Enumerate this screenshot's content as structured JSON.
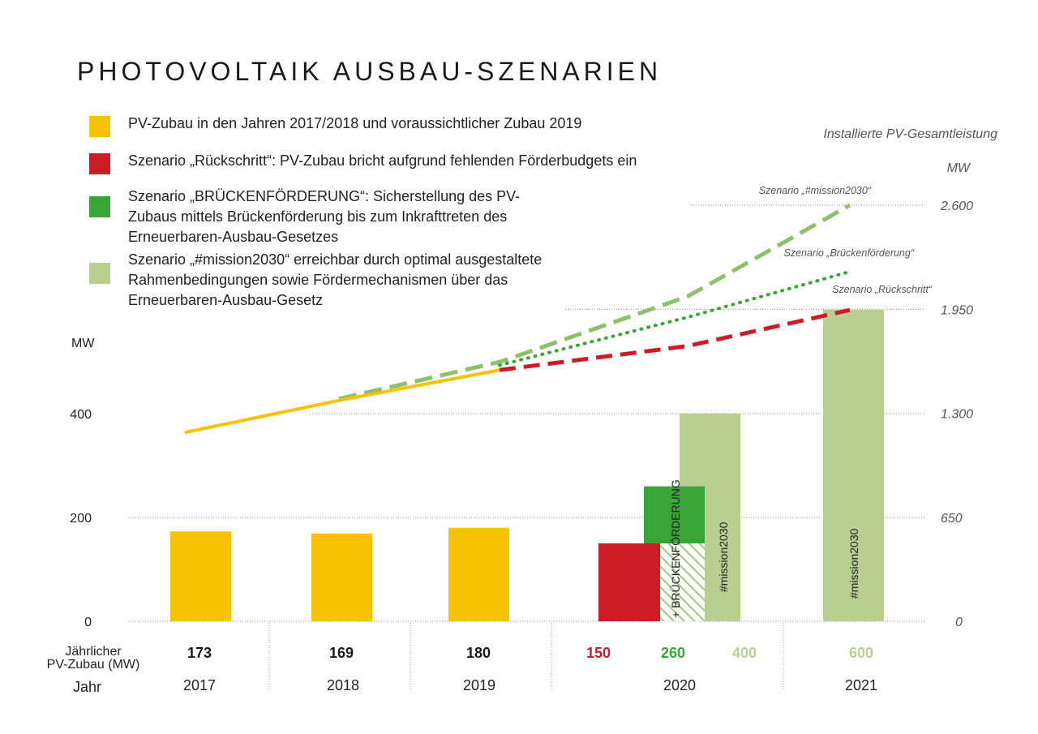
{
  "title": "PHOTOVOLTAIK AUSBAU-SZENARIEN",
  "legend": [
    {
      "color": "#f7c200",
      "text": "PV-Zubau in den Jahren 2017/2018 und voraussichtlicher Zubau 2019"
    },
    {
      "color": "#cc1d24",
      "text": "Szenario „Rückschritt“: PV-Zubau bricht aufgrund fehlenden Förderbudgets ein"
    },
    {
      "color": "#3aa537",
      "text": "Szenario „BRÜCKENFÖRDERUNG“: Sicherstellung des PV-Zubaus mittels Brückenförderung bis zum Inkrafttreten des Erneuerbaren-Ausbau-Gesetzes"
    },
    {
      "color": "#b9cf8f",
      "text": "Szenario „#mission2030“ erreichbar durch optimal ausgestaltete Rahmenbedingungen sowie Fördermechanismen über das Erneuerbaren-Ausbau-Gesetz"
    }
  ],
  "chart_data": {
    "type": "bar",
    "title": "PHOTOVOLTAIK AUSBAU-SZENARIEN",
    "left_axis": {
      "unit": "MW",
      "ticks": [
        0,
        200,
        400
      ],
      "ticklabels": [
        "0",
        "200",
        "400"
      ]
    },
    "right_axis": {
      "title": "Installierte PV-Gesamtleistung",
      "unit": "MW",
      "ticks": [
        0,
        650,
        1300,
        1950,
        2600
      ],
      "ticklabels": [
        "0",
        "650",
        "1.300",
        "1.950",
        "2.600"
      ]
    },
    "row_headers": {
      "annual": "Jährlicher PV-Zubau (MW)",
      "year": "Jahr"
    },
    "years": [
      "2017",
      "2018",
      "2019",
      "2020",
      "2021"
    ],
    "bars": [
      {
        "year": "2017",
        "value": 173,
        "scenario": "historic",
        "label": "173"
      },
      {
        "year": "2018",
        "value": 169,
        "scenario": "historic",
        "label": "169"
      },
      {
        "year": "2019",
        "value": 180,
        "scenario": "historic",
        "label": "180"
      },
      {
        "year": "2020",
        "value": 150,
        "scenario": "rueckschritt",
        "label": "150"
      },
      {
        "year": "2020",
        "value": 260,
        "scenario": "brueckenfoerderung",
        "label": "260",
        "bar_text": "+ BRÜCKENFÖRDERUNG"
      },
      {
        "year": "2020",
        "value": 400,
        "scenario": "mission2030",
        "label": "400",
        "bar_text": "#mission2030"
      },
      {
        "year": "2021",
        "value": 600,
        "scenario": "mission2030",
        "label": "600",
        "bar_text": "#mission2030"
      }
    ],
    "cumulative_lines": [
      {
        "name": "historic",
        "points": [
          [
            2017,
            1180
          ],
          [
            2018,
            1380
          ],
          [
            2019,
            1570
          ]
        ]
      },
      {
        "name": "Szenario „Rückschritt“",
        "label": "Szenario „Rückschritt“",
        "points": [
          [
            2019,
            1570
          ],
          [
            2020,
            1720
          ],
          [
            2021,
            1945
          ]
        ]
      },
      {
        "name": "Szenario „Brückenförderung“",
        "label": "Szenario „Brückenförderung“",
        "points": [
          [
            2019,
            1600
          ],
          [
            2020,
            1900
          ],
          [
            2021,
            2185
          ]
        ]
      },
      {
        "name": "Szenario „#mission2030“",
        "label": "Szenario „#mission2030“",
        "points": [
          [
            2018,
            1390
          ],
          [
            2019,
            1620
          ],
          [
            2020,
            2030
          ],
          [
            2021,
            2600
          ]
        ]
      }
    ],
    "colors": {
      "historic": "#f7c200",
      "rueckschritt": "#cc1d24",
      "brueckenfoerderung": "#3aa537",
      "mission2030": "#b9cf8f",
      "mission_line": "#8fbf6a",
      "bruecke_line": "#3aa537"
    }
  }
}
